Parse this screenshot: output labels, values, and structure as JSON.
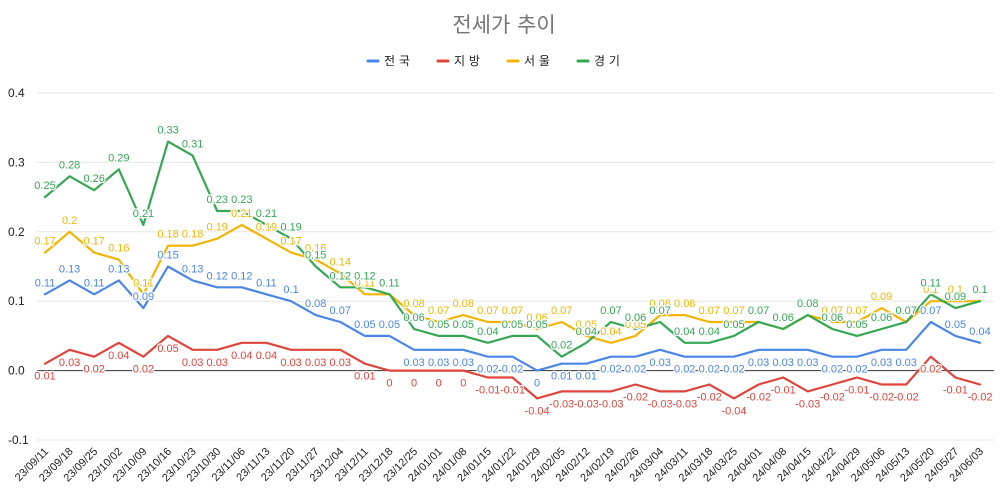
{
  "chart_data": {
    "type": "line",
    "title": "전세가 추이",
    "ylim": [
      -0.1,
      0.4
    ],
    "yticks": [
      "-0.1",
      "0.0",
      "0.1",
      "0.2",
      "0.3",
      "0.4"
    ],
    "grid": true,
    "legend_position": "top-center",
    "categories": [
      "23/09/11",
      "23/09/18",
      "23/09/25",
      "23/10/02",
      "23/10/09",
      "23/10/16",
      "23/10/23",
      "23/10/30",
      "23/11/06",
      "23/11/13",
      "23/11/20",
      "23/11/27",
      "23/12/04",
      "23/12/11",
      "23/12/18",
      "23/12/25",
      "24/01/01",
      "24/01/08",
      "24/01/15",
      "24/01/22",
      "24/01/29",
      "24/02/05",
      "24/02/12",
      "24/02/19",
      "24/02/26",
      "24/03/04",
      "24/03/11",
      "24/03/18",
      "24/03/25",
      "24/04/01",
      "24/04/08",
      "24/04/15",
      "24/04/22",
      "24/04/29",
      "24/05/06",
      "24/05/13",
      "24/05/20",
      "24/05/27",
      "24/06/03"
    ],
    "series": [
      {
        "name": "전국",
        "color": "#4a86e8",
        "values": [
          0.11,
          0.13,
          0.11,
          0.13,
          0.09,
          0.15,
          0.13,
          0.12,
          0.12,
          0.11,
          0.1,
          0.08,
          0.07,
          0.05,
          0.05,
          0.03,
          0.03,
          0.03,
          0.02,
          0.02,
          0,
          0.01,
          0.01,
          0.02,
          0.02,
          0.03,
          0.02,
          0.02,
          0.02,
          0.03,
          0.03,
          0.03,
          0.02,
          0.02,
          0.03,
          0.03,
          0.07,
          0.05,
          0.04
        ]
      },
      {
        "name": "지방",
        "color": "#e0443a",
        "values": [
          0.01,
          0.03,
          0.02,
          0.04,
          0.02,
          0.05,
          0.03,
          0.03,
          0.04,
          0.04,
          0.03,
          0.03,
          0.03,
          0.01,
          0,
          0,
          0,
          0,
          -0.01,
          -0.01,
          -0.04,
          -0.03,
          -0.03,
          -0.03,
          -0.02,
          -0.03,
          -0.03,
          -0.02,
          -0.04,
          -0.02,
          -0.01,
          -0.03,
          -0.02,
          -0.01,
          -0.02,
          -0.02,
          0.02,
          -0.01,
          -0.02
        ]
      },
      {
        "name": "서울",
        "color": "#f4b400",
        "values": [
          0.17,
          0.2,
          0.17,
          0.16,
          0.11,
          0.18,
          0.18,
          0.19,
          0.21,
          0.19,
          0.17,
          0.16,
          0.14,
          0.11,
          0.11,
          0.08,
          0.07,
          0.08,
          0.07,
          0.07,
          0.06,
          0.07,
          0.05,
          0.04,
          0.05,
          0.08,
          0.08,
          0.07,
          0.07,
          0.07,
          0.06,
          0.08,
          0.07,
          0.07,
          0.09,
          0.07,
          0.1,
          0.1,
          0.1
        ]
      },
      {
        "name": "경기",
        "color": "#34a853",
        "values": [
          0.25,
          0.28,
          0.26,
          0.29,
          0.21,
          0.33,
          0.31,
          0.23,
          0.23,
          0.21,
          0.19,
          0.15,
          0.12,
          0.12,
          0.11,
          0.06,
          0.05,
          0.05,
          0.04,
          0.05,
          0.05,
          0.02,
          0.04,
          0.07,
          0.06,
          0.07,
          0.04,
          0.04,
          0.05,
          0.07,
          0.06,
          0.08,
          0.06,
          0.05,
          0.06,
          0.07,
          0.11,
          0.09,
          0.1
        ]
      }
    ]
  }
}
